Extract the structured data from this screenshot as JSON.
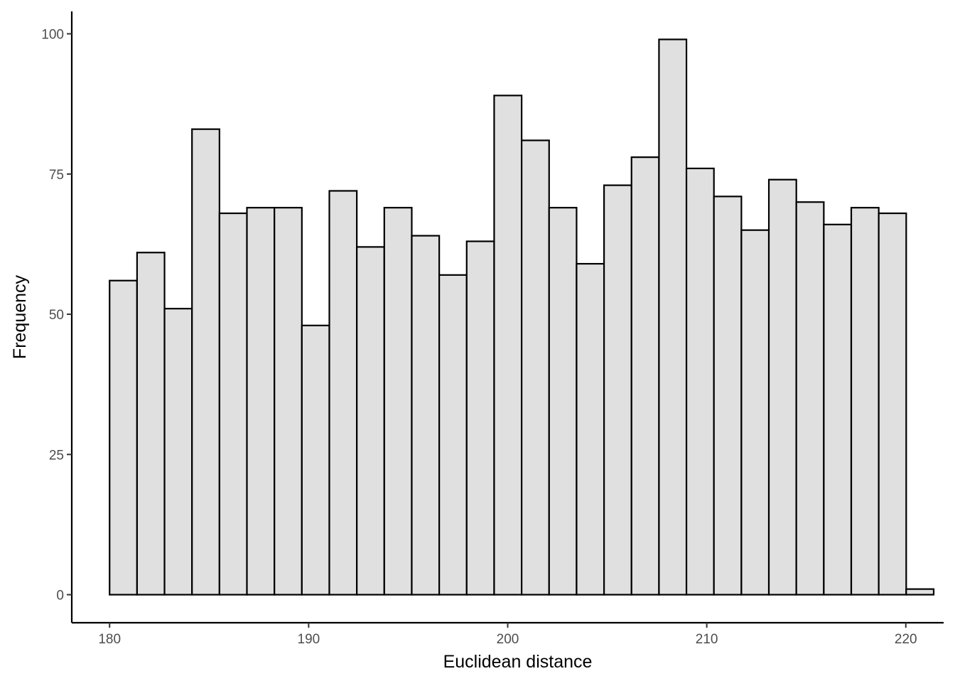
{
  "chart_data": {
    "type": "bar",
    "subtype": "histogram",
    "xlabel": "Euclidean distance",
    "ylabel": "Frequency",
    "xlim": [
      178.1,
      221.9
    ],
    "ylim": [
      -5,
      104
    ],
    "x_ticks": [
      180,
      190,
      200,
      210,
      220
    ],
    "y_ticks": [
      0,
      25,
      50,
      75,
      100
    ],
    "x_tick_labels": [
      "180",
      "190",
      "200",
      "210",
      "220"
    ],
    "y_tick_labels": [
      "0",
      "25",
      "50",
      "75",
      "100"
    ],
    "bin_start": 180,
    "bin_width": 1.38,
    "bins": [
      {
        "x0": 180.0,
        "x1": 181.38,
        "count": 56
      },
      {
        "x0": 181.38,
        "x1": 182.76,
        "count": 61
      },
      {
        "x0": 182.76,
        "x1": 184.14,
        "count": 51
      },
      {
        "x0": 184.14,
        "x1": 185.52,
        "count": 83
      },
      {
        "x0": 185.52,
        "x1": 186.9,
        "count": 68
      },
      {
        "x0": 186.9,
        "x1": 188.28,
        "count": 69
      },
      {
        "x0": 188.28,
        "x1": 189.66,
        "count": 69
      },
      {
        "x0": 189.66,
        "x1": 191.04,
        "count": 48
      },
      {
        "x0": 191.04,
        "x1": 192.42,
        "count": 72
      },
      {
        "x0": 192.42,
        "x1": 193.8,
        "count": 62
      },
      {
        "x0": 193.8,
        "x1": 195.18,
        "count": 69
      },
      {
        "x0": 195.18,
        "x1": 196.56,
        "count": 64
      },
      {
        "x0": 196.56,
        "x1": 197.94,
        "count": 57
      },
      {
        "x0": 197.94,
        "x1": 199.32,
        "count": 63
      },
      {
        "x0": 199.32,
        "x1": 200.7,
        "count": 89
      },
      {
        "x0": 200.7,
        "x1": 202.08,
        "count": 81
      },
      {
        "x0": 202.08,
        "x1": 203.46,
        "count": 69
      },
      {
        "x0": 203.46,
        "x1": 204.84,
        "count": 59
      },
      {
        "x0": 204.84,
        "x1": 206.22,
        "count": 73
      },
      {
        "x0": 206.22,
        "x1": 207.6,
        "count": 78
      },
      {
        "x0": 207.6,
        "x1": 208.98,
        "count": 99
      },
      {
        "x0": 208.98,
        "x1": 210.36,
        "count": 76
      },
      {
        "x0": 210.36,
        "x1": 211.74,
        "count": 71
      },
      {
        "x0": 211.74,
        "x1": 213.12,
        "count": 65
      },
      {
        "x0": 213.12,
        "x1": 214.5,
        "count": 74
      },
      {
        "x0": 214.5,
        "x1": 215.88,
        "count": 70
      },
      {
        "x0": 215.88,
        "x1": 217.26,
        "count": 66
      },
      {
        "x0": 217.26,
        "x1": 218.64,
        "count": 69
      },
      {
        "x0": 218.64,
        "x1": 220.02,
        "count": 68
      },
      {
        "x0": 220.02,
        "x1": 221.4,
        "count": 1
      }
    ],
    "grid": false,
    "bar_fill": "#e0e0e0",
    "bar_stroke": "#000000"
  }
}
